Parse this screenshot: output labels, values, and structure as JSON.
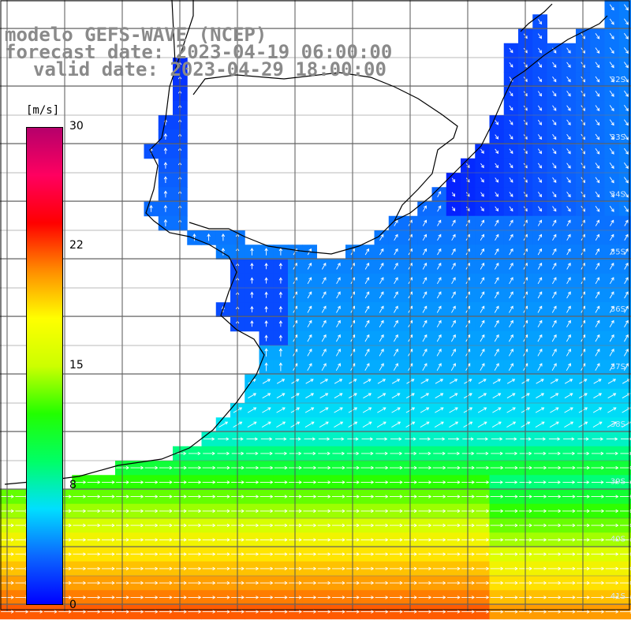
{
  "title": {
    "line1": "modelo GEFS-WAVE (NCEP)",
    "line2": "forecast date: 2023-04-19 06:00:00",
    "line3": "valid date: 2023-04-29 18:00:00"
  },
  "colorbar": {
    "unit": "[m/s]",
    "ticks": [
      "30",
      "22",
      "15",
      "8",
      "0"
    ],
    "stops": [
      "#0000ff",
      "#0b66ff",
      "#00dfff",
      "#00ff66",
      "#22ff00",
      "#ccff00",
      "#ffff00",
      "#ff8c00",
      "#ff0000",
      "#ff0060",
      "#b5006b"
    ]
  },
  "map": {
    "lat_labels": [
      "32S",
      "33S",
      "34S",
      "35S",
      "36S",
      "37S",
      "38S",
      "39S",
      "40S",
      "41S"
    ]
  },
  "chart_data": {
    "type": "heatmap",
    "variable": "wind speed and direction",
    "unit": "m/s",
    "zlim": [
      0,
      30
    ],
    "lat_ticks": [
      "32S",
      "33S",
      "34S",
      "35S",
      "36S",
      "37S",
      "38S",
      "39S",
      "40S",
      "41S"
    ],
    "regions": [
      {
        "area": "north-east offshore near coast",
        "speed_approx": 1,
        "direction": "north-westerly / southward-flowing"
      },
      {
        "area": "Rio de la Plata estuary",
        "speed_approx": 3,
        "direction": "southerly, flowing north"
      },
      {
        "area": "central shelf",
        "speed_approx": 5,
        "direction": "south-westerly, flowing north-east"
      },
      {
        "area": "southern band",
        "speed_approx": 11,
        "direction": "westerly, flowing east"
      }
    ]
  }
}
